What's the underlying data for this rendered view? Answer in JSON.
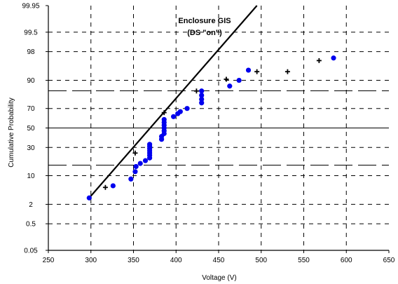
{
  "chart_data": {
    "type": "scatter",
    "title": "",
    "annotation": [
      "Enclosure GIS",
      "(DS \"on\")"
    ],
    "xlabel": "Voltage (V)",
    "ylabel": "Cumulative Probability",
    "xlim": [
      250,
      650
    ],
    "xticks": [
      250,
      300,
      350,
      400,
      450,
      500,
      550,
      600,
      650
    ],
    "y_scale": "normal probability",
    "ylim": [
      0.05,
      99.95
    ],
    "yticks": [
      0.05,
      0.5,
      2,
      10,
      30,
      50,
      70,
      90,
      98,
      99.5,
      99.95
    ],
    "grid": "dashed",
    "reference_lines": {
      "solid": [
        50
      ],
      "long_dash": [
        15.9,
        84.1
      ]
    },
    "series": [
      {
        "marker": "blue circle",
        "color": "#0000ee",
        "points": [
          [
            298,
            3
          ],
          [
            326,
            6
          ],
          [
            347,
            8.5
          ],
          [
            352,
            12
          ],
          [
            353,
            15
          ],
          [
            358,
            17
          ],
          [
            364,
            19
          ],
          [
            369,
            21
          ],
          [
            369,
            23
          ],
          [
            369,
            25
          ],
          [
            369,
            27
          ],
          [
            369,
            29
          ],
          [
            369,
            31
          ],
          [
            369,
            33
          ],
          [
            383,
            38
          ],
          [
            383,
            41
          ],
          [
            386,
            44
          ],
          [
            386,
            47
          ],
          [
            386,
            50
          ],
          [
            386,
            53
          ],
          [
            386,
            56
          ],
          [
            386,
            59
          ],
          [
            397,
            62
          ],
          [
            402,
            65
          ],
          [
            405,
            67
          ],
          [
            413,
            70
          ],
          [
            430,
            75
          ],
          [
            430,
            78
          ],
          [
            430,
            81
          ],
          [
            430,
            84
          ],
          [
            463,
            87
          ],
          [
            474,
            90
          ],
          [
            485,
            94
          ],
          [
            585,
            97
          ]
        ]
      },
      {
        "marker": "black plus",
        "color": "#000000",
        "points": [
          [
            317,
            5.5
          ],
          [
            352,
            25
          ],
          [
            386,
            66
          ],
          [
            424,
            84
          ],
          [
            459,
            90.5
          ],
          [
            495,
            93.5
          ],
          [
            531,
            93.5
          ],
          [
            568,
            96.5
          ]
        ]
      }
    ],
    "fit_line": {
      "color": "#000000",
      "points": [
        [
          298,
          3
        ],
        [
          495,
          99.95
        ]
      ]
    }
  }
}
